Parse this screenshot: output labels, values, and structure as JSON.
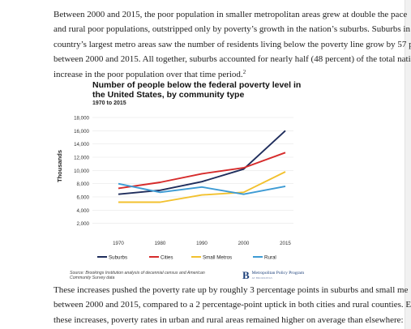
{
  "article": {
    "para_top_lines": [
      "Between 2000 and 2015, the poor population in smaller metropolitan areas grew at double the pace",
      "and rural poor populations, outstripped only by poverty’s growth in the nation’s suburbs. Suburbs in",
      "country’s largest metro areas saw the number of residents living below the poverty line grow by 57 p",
      "between 2000 and 2015. All together, suburbs accounted for nearly half (48 percent) of the total nati"
    ],
    "para_top_last": "increase in the poor population over that time period.",
    "footnote_mark": "2",
    "para_bottom_lines": [
      "These increases pushed the poverty rate up by roughly 3 percentage points in suburbs and small me",
      "between 2000 and 2015, compared to a 2 percentage-point uptick in both cities and rural counties. E",
      "these increases, poverty rates in urban and rural areas remained higher on average than elsewhere: "
    ]
  },
  "chart_data": {
    "type": "line",
    "title": "Number of people below the federal poverty level in the United States, by community type",
    "subtitle": "1970 to 2015",
    "xlabel": "",
    "ylabel": "Thousands",
    "categories": [
      "1970",
      "1980",
      "1990",
      "2000",
      "2015"
    ],
    "ylim": [
      0,
      18000
    ],
    "yticks": [
      "2,000",
      "4,000",
      "6,000",
      "8,000",
      "10,000",
      "12,000",
      "14,000",
      "16,000",
      "18,000"
    ],
    "ytick_values": [
      2000,
      4000,
      6000,
      8000,
      10000,
      12000,
      14000,
      16000,
      18000
    ],
    "grid": true,
    "legend_position": "bottom",
    "series": [
      {
        "name": "Suburbs",
        "color": "#1f2d5c",
        "values": [
          6400,
          7000,
          8300,
          10200,
          16000
        ]
      },
      {
        "name": "Cities",
        "color": "#d62b2b",
        "values": [
          7300,
          8200,
          9500,
          10400,
          12700
        ]
      },
      {
        "name": "Small Metros",
        "color": "#f2c12e",
        "values": [
          5200,
          5200,
          6300,
          6700,
          9800
        ]
      },
      {
        "name": "Rural",
        "color": "#3d9bd4",
        "values": [
          8000,
          6700,
          7500,
          6400,
          7600
        ]
      }
    ],
    "source": "Source: Brookings Institution analysis of decennial census and American Community Survey data"
  },
  "branding": {
    "logo_letter": "B",
    "name": "Metropolitan Policy Program",
    "sub": "AT BROOKINGS"
  }
}
